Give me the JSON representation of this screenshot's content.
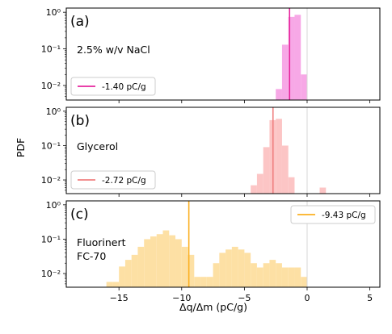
{
  "chart_data": [
    {
      "type": "bar",
      "panel": "(a)",
      "annotation": [
        "2.5% w/v NaCl"
      ],
      "ylabel": "PDF",
      "yscale": "log",
      "ylim": [
        0.004,
        1.3
      ],
      "xlim": [
        -19.2,
        5.8
      ],
      "bin_width": 0.5,
      "color": "#f7a8e6",
      "mean_line": {
        "x": -1.4,
        "label": "-1.40 pC/g",
        "color": "#e6259d"
      },
      "legend_loc": "lower-left",
      "zero_line": true,
      "bins": [
        [
          -2.5,
          0.008
        ],
        [
          -2.0,
          0.13
        ],
        [
          -1.5,
          0.75
        ],
        [
          -1.0,
          0.85
        ],
        [
          -0.5,
          0.02
        ]
      ]
    },
    {
      "type": "bar",
      "panel": "(b)",
      "annotation": [
        "Glycerol"
      ],
      "ylabel": "PDF",
      "yscale": "log",
      "ylim": [
        0.004,
        1.3
      ],
      "xlim": [
        -19.2,
        5.8
      ],
      "bin_width": 0.5,
      "color": "#fcc5c5",
      "mean_line": {
        "x": -2.72,
        "label": "-2.72 pC/g",
        "color": "#f08080"
      },
      "legend_loc": "lower-left",
      "zero_line": true,
      "bins": [
        [
          -4.5,
          0.007
        ],
        [
          -4.0,
          0.015
        ],
        [
          -3.5,
          0.09
        ],
        [
          -3.0,
          0.55
        ],
        [
          -2.5,
          0.6
        ],
        [
          -2.0,
          0.1
        ],
        [
          -1.5,
          0.012
        ],
        [
          1.0,
          0.006
        ]
      ]
    },
    {
      "type": "bar",
      "panel": "(c)",
      "annotation": [
        "Fluorinert",
        "FC-70"
      ],
      "ylabel": "PDF",
      "yscale": "log",
      "ylim": [
        0.004,
        1.3
      ],
      "xlim": [
        -19.2,
        5.8
      ],
      "xlabel": "Δq/Δm (pC/g)",
      "xticks": [
        -15,
        -10,
        -5,
        0,
        5
      ],
      "bin_width": 0.5,
      "color": "#fde0a4",
      "mean_line": {
        "x": -9.43,
        "label": "-9.43 pC/g",
        "color": "#fbb021"
      },
      "legend_loc": "upper-right",
      "zero_line": true,
      "bins": [
        [
          -16.0,
          0.0057
        ],
        [
          -15.5,
          0.0057
        ],
        [
          -15.0,
          0.016
        ],
        [
          -14.5,
          0.025
        ],
        [
          -14.0,
          0.035
        ],
        [
          -13.5,
          0.06
        ],
        [
          -13.0,
          0.1
        ],
        [
          -12.5,
          0.12
        ],
        [
          -12.0,
          0.14
        ],
        [
          -11.5,
          0.18
        ],
        [
          -11.0,
          0.13
        ],
        [
          -10.5,
          0.1
        ],
        [
          -10.0,
          0.06
        ],
        [
          -9.5,
          0.035
        ],
        [
          -9.0,
          0.008
        ],
        [
          -8.5,
          0.008
        ],
        [
          -8.0,
          0.008
        ],
        [
          -7.5,
          0.02
        ],
        [
          -7.0,
          0.04
        ],
        [
          -6.5,
          0.05
        ],
        [
          -6.0,
          0.06
        ],
        [
          -5.5,
          0.05
        ],
        [
          -5.0,
          0.04
        ],
        [
          -4.5,
          0.02
        ],
        [
          -4.0,
          0.015
        ],
        [
          -3.5,
          0.02
        ],
        [
          -3.0,
          0.025
        ],
        [
          -2.5,
          0.02
        ],
        [
          -2.0,
          0.015
        ],
        [
          -1.5,
          0.015
        ],
        [
          -1.0,
          0.015
        ],
        [
          -0.5,
          0.008
        ]
      ]
    }
  ],
  "tick_text": {
    "y_major": [
      "10⁰",
      "10⁻¹",
      "10⁻²"
    ],
    "x_major": [
      "−15",
      "−10",
      "−5",
      "0",
      "5"
    ]
  }
}
